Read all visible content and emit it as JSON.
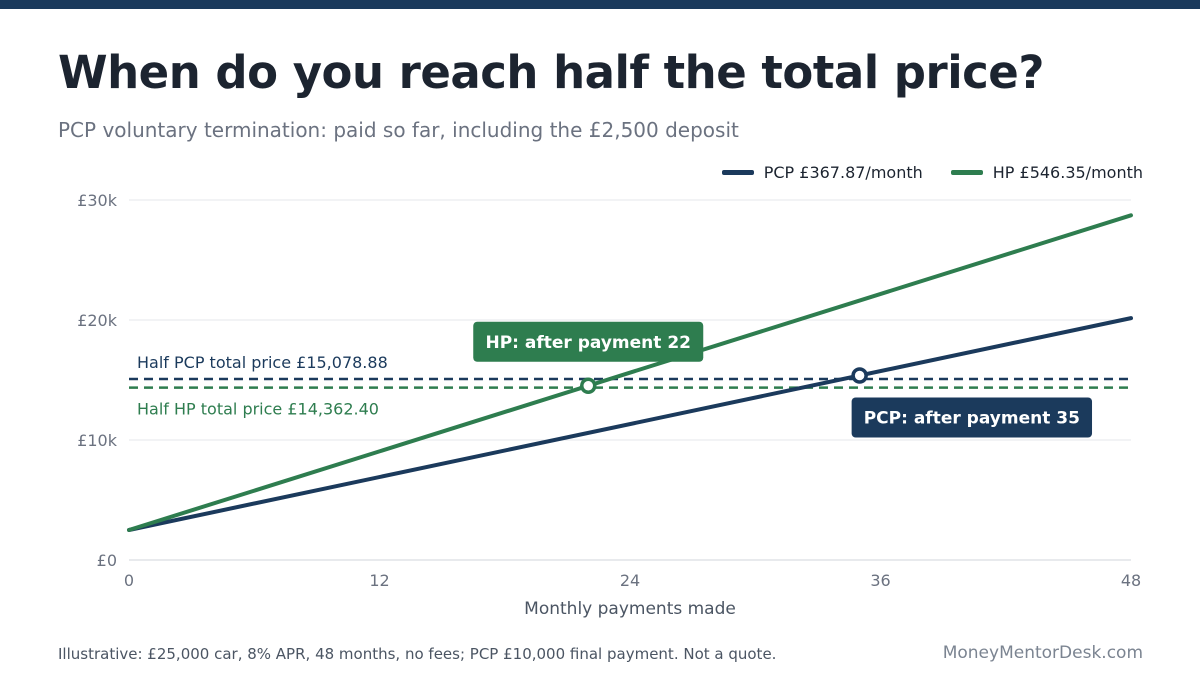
{
  "title": "When do you reach half the total price?",
  "subtitle": "PCP voluntary termination: paid so far, including the £2,500 deposit",
  "footer_note": "Illustrative: £25,000 car, 8% APR, 48 months, no fees; PCP £10,000 final payment. Not a quote.",
  "brand": "MoneyMentorDesk.com",
  "colors": {
    "pcp": "#1b3a5c",
    "hp": "#2e7d4f",
    "grid": "#e5e7eb",
    "axis_text": "#6b7280"
  },
  "chart_data": {
    "type": "line",
    "xlabel": "Monthly payments made",
    "ylabel": "",
    "xlim": [
      0,
      48
    ],
    "ylim": [
      0,
      30000
    ],
    "x_ticks": [
      0,
      12,
      24,
      36,
      48
    ],
    "x_tick_labels": [
      "0",
      "12",
      "24",
      "36",
      "48"
    ],
    "y_ticks": [
      0,
      10000,
      20000,
      30000
    ],
    "y_tick_labels": [
      "£0",
      "£10k",
      "£20k",
      "£30k"
    ],
    "grid": "horizontal",
    "legend_position": "top-right",
    "series": [
      {
        "key": "pcp",
        "name": "PCP £367.87/month",
        "x": [
          0,
          48
        ],
        "y": [
          2500,
          20157.76
        ]
      },
      {
        "key": "hp",
        "name": "HP £546.35/month",
        "x": [
          0,
          48
        ],
        "y": [
          2500,
          28724.8
        ]
      }
    ],
    "reference_lines": [
      {
        "key": "pcp",
        "label": "Half PCP total price £15,078.88",
        "y": 15078.88
      },
      {
        "key": "hp",
        "label": "Half HP total price £14,362.40",
        "y": 14362.4
      }
    ],
    "markers": [
      {
        "key": "hp",
        "x": 22,
        "y": 14519.7,
        "label": "HP: after payment 22"
      },
      {
        "key": "pcp",
        "x": 35,
        "y": 15375.45,
        "label": "PCP: after payment 35"
      }
    ]
  }
}
